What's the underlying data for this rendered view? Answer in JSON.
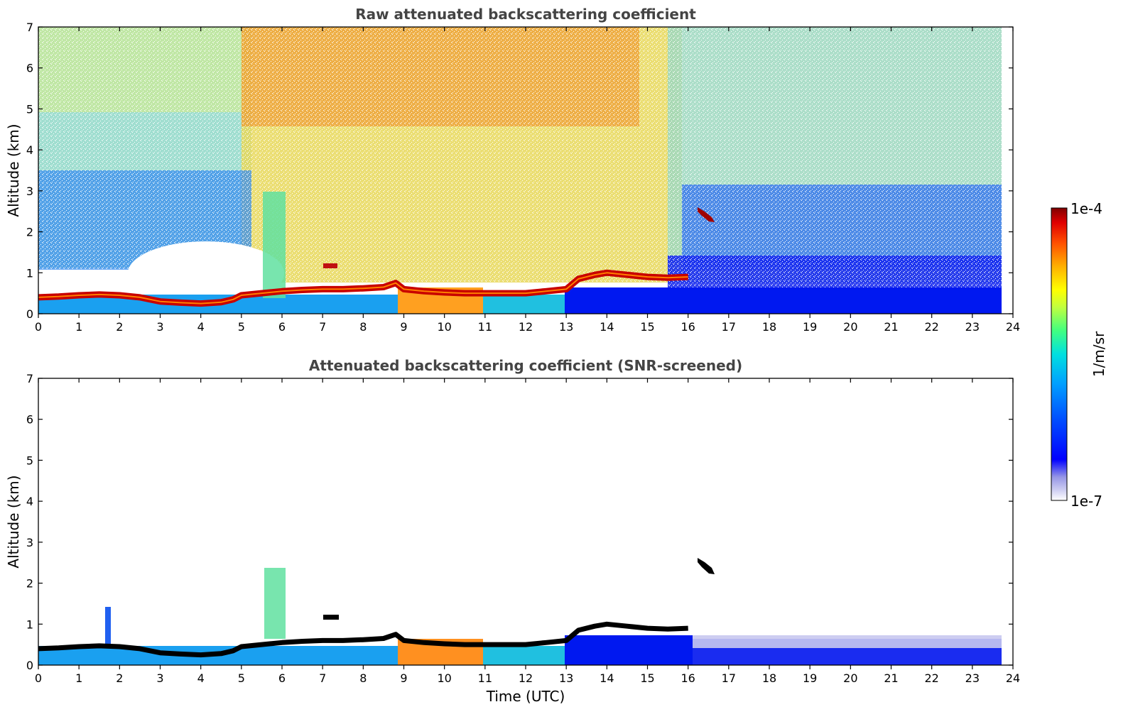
{
  "chart_data": [
    {
      "type": "heatmap",
      "title": "Raw attenuated backscattering coefficient",
      "xlabel": "",
      "ylabel": "Altitude (km)",
      "xlim": [
        0,
        24
      ],
      "ylim": [
        0,
        7
      ],
      "xticks": [
        "0",
        "1",
        "2",
        "3",
        "4",
        "5",
        "6",
        "7",
        "8",
        "9",
        "10",
        "11",
        "12",
        "13",
        "14",
        "15",
        "16",
        "17",
        "18",
        "19",
        "20",
        "21",
        "22",
        "23",
        "24"
      ],
      "yticks": [
        "0",
        "1",
        "2",
        "3",
        "4",
        "5",
        "6",
        "7"
      ],
      "data_end_time": 23.7,
      "boundary_layer_top_km": [
        [
          0,
          0.4
        ],
        [
          0.5,
          0.42
        ],
        [
          1,
          0.45
        ],
        [
          1.5,
          0.47
        ],
        [
          2,
          0.45
        ],
        [
          2.5,
          0.4
        ],
        [
          3,
          0.3
        ],
        [
          3.5,
          0.27
        ],
        [
          4,
          0.25
        ],
        [
          4.5,
          0.28
        ],
        [
          4.8,
          0.35
        ],
        [
          5,
          0.45
        ],
        [
          5.5,
          0.5
        ],
        [
          6,
          0.55
        ],
        [
          6.5,
          0.58
        ],
        [
          7,
          0.6
        ],
        [
          7.5,
          0.6
        ],
        [
          8,
          0.62
        ],
        [
          8.5,
          0.65
        ],
        [
          8.8,
          0.75
        ],
        [
          9,
          0.6
        ],
        [
          9.5,
          0.55
        ],
        [
          10,
          0.52
        ],
        [
          10.5,
          0.5
        ],
        [
          11,
          0.5
        ],
        [
          11.5,
          0.5
        ],
        [
          12,
          0.5
        ],
        [
          12.5,
          0.55
        ],
        [
          13,
          0.6
        ],
        [
          13.3,
          0.85
        ],
        [
          13.7,
          0.95
        ],
        [
          14,
          1.0
        ],
        [
          14.5,
          0.95
        ],
        [
          15,
          0.9
        ],
        [
          15.5,
          0.88
        ],
        [
          16,
          0.9
        ]
      ],
      "features": [
        {
          "name": "elevated aerosol plume",
          "time_start": 5.5,
          "time_end": 6.0,
          "alt_min_km": 0.5,
          "alt_max_km": 3.0
        },
        {
          "name": "thin layer",
          "time_start": 7.0,
          "time_end": 7.4,
          "alt_min_km": 1.1,
          "alt_max_km": 1.2
        },
        {
          "name": "cloud",
          "time_start": 16.2,
          "time_end": 16.7,
          "alt_min_km": 2.2,
          "alt_max_km": 2.55
        }
      ]
    },
    {
      "type": "heatmap",
      "title": "Attenuated backscattering coefficient (SNR-screened)",
      "xlabel": "Time (UTC)",
      "ylabel": "Altitude (km)",
      "xlim": [
        0,
        24
      ],
      "ylim": [
        0,
        7
      ],
      "xticks": [
        "0",
        "1",
        "2",
        "3",
        "4",
        "5",
        "6",
        "7",
        "8",
        "9",
        "10",
        "11",
        "12",
        "13",
        "14",
        "15",
        "16",
        "17",
        "18",
        "19",
        "20",
        "21",
        "22",
        "23",
        "24"
      ],
      "yticks": [
        "0",
        "1",
        "2",
        "3",
        "4",
        "5",
        "6",
        "7"
      ],
      "data_end_time": 23.7
    }
  ],
  "colorbar": {
    "max_label": "1e-4",
    "min_label": "1e-7",
    "unit_label": "1/m/sr",
    "colors": [
      "#ffffff",
      "#c8c8f0",
      "#9696e6",
      "#0000ff",
      "#0050ff",
      "#00a0ff",
      "#00e0e0",
      "#40ff80",
      "#c0ff40",
      "#ffff00",
      "#ffb000",
      "#ff5000",
      "#e00000",
      "#800000"
    ]
  }
}
